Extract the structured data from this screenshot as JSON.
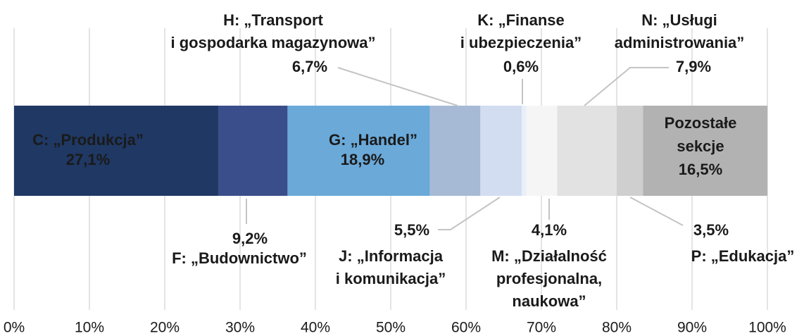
{
  "chart_data": {
    "type": "stacked-bar-100",
    "series": [
      {
        "name": "C: „Produkcja”",
        "color": "#1f3864",
        "values": [
          27.1
        ],
        "value_labels": [
          "27,1%"
        ]
      },
      {
        "name": "F: „Budownictwo”",
        "color": "#394e8a",
        "values": [
          9.2
        ],
        "value_labels": [
          "9,2%"
        ]
      },
      {
        "name": "G: „Handel”",
        "color": "#6aa9d8",
        "values": [
          18.9
        ],
        "value_labels": [
          "18,9%"
        ]
      },
      {
        "name": "H: „Transport\ni gospodarka magazynowa”",
        "color": "#a6bad6",
        "values": [
          6.7
        ],
        "value_labels": [
          "6,7%"
        ]
      },
      {
        "name": "J: „Informacja\ni komunikacja”",
        "color": "#d2ddf1",
        "values": [
          5.5
        ],
        "value_labels": [
          "5,5%"
        ]
      },
      {
        "name": "K: „Finanse\ni ubezpieczenia”",
        "color": "#e9eff8",
        "values": [
          0.6
        ],
        "value_labels": [
          "0,6%"
        ]
      },
      {
        "name": "M: „Działalność\nprofesjonalna,\nnaukowa”",
        "color": "#f5f5f5",
        "values": [
          4.1
        ],
        "value_labels": [
          "4,1%"
        ]
      },
      {
        "name": "N: „Usługi\nadministrowania”",
        "color": "#e2e2e2",
        "values": [
          7.9
        ],
        "value_labels": [
          "7,9%"
        ]
      },
      {
        "name": "P: „Edukacja”",
        "color": "#cfcfcf",
        "values": [
          3.5
        ],
        "value_labels": [
          "3,5%"
        ]
      },
      {
        "name": "Pozostałe\nsekcje",
        "color": "#b2b2b2",
        "values": [
          16.5
        ],
        "value_labels": [
          "16,5%"
        ]
      }
    ],
    "xlim": [
      0,
      100
    ],
    "xticks": [
      {
        "value": 0,
        "label": "0%"
      },
      {
        "value": 10,
        "label": "10%"
      },
      {
        "value": 20,
        "label": "20%"
      },
      {
        "value": 30,
        "label": "30%"
      },
      {
        "value": 40,
        "label": "40%"
      },
      {
        "value": 50,
        "label": "50%"
      },
      {
        "value": 60,
        "label": "60%"
      },
      {
        "value": 70,
        "label": "70%"
      },
      {
        "value": 80,
        "label": "80%"
      },
      {
        "value": 90,
        "label": "90%"
      },
      {
        "value": 100,
        "label": "100%"
      }
    ],
    "grid": true
  }
}
